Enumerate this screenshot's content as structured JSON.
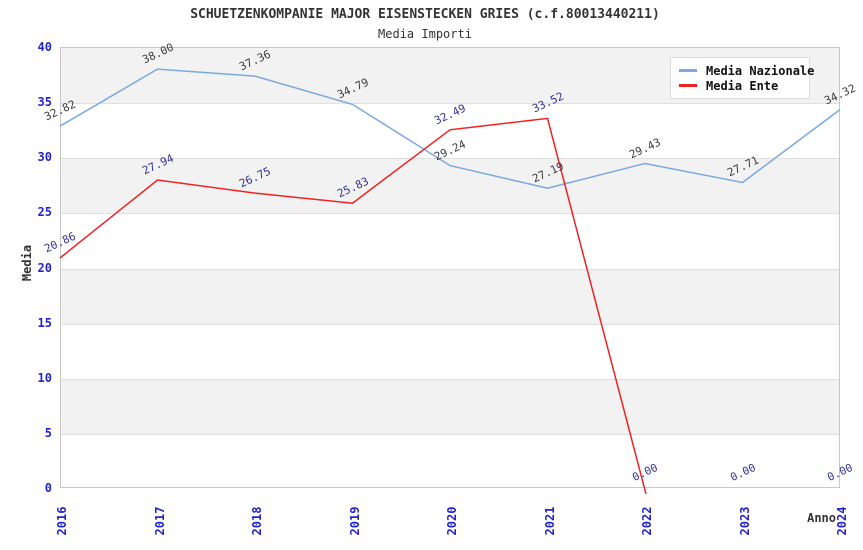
{
  "header": {
    "title": "SCHUETZENKOMPANIE MAJOR EISENSTECKEN GRIES (c.f.80013440211)",
    "subtitle": "Media Importi"
  },
  "chart_data": {
    "type": "line",
    "x": [
      "2016",
      "2017",
      "2018",
      "2019",
      "2020",
      "2021",
      "2022",
      "2023",
      "2024"
    ],
    "xlabel": "Anno",
    "ylabel": "Media",
    "ylim": [
      0,
      40
    ],
    "ytick_step": 5,
    "yticks": [
      "0",
      "5",
      "10",
      "15",
      "20",
      "25",
      "30",
      "35",
      "40"
    ],
    "grid": "alternating-bands",
    "legend_position": "top-right",
    "series": [
      {
        "name": "Media Nazionale",
        "color": "#79a9e0",
        "label_color": "#3c3c3c",
        "values": [
          32.82,
          38.0,
          37.36,
          34.79,
          29.24,
          27.19,
          29.43,
          27.71,
          34.32
        ]
      },
      {
        "name": "Media Ente",
        "color": "#ee2222",
        "label_color": "#333399",
        "values": [
          20.86,
          27.94,
          26.75,
          25.83,
          32.49,
          33.52,
          0.0,
          0.0,
          0.0
        ]
      }
    ]
  },
  "colors": {
    "tick_label": "#2424cc",
    "band_fill": "#f2f2f2",
    "grid_line": "#e0e0e0",
    "plot_border": "#c8c8c8",
    "title_text": "#333333"
  }
}
